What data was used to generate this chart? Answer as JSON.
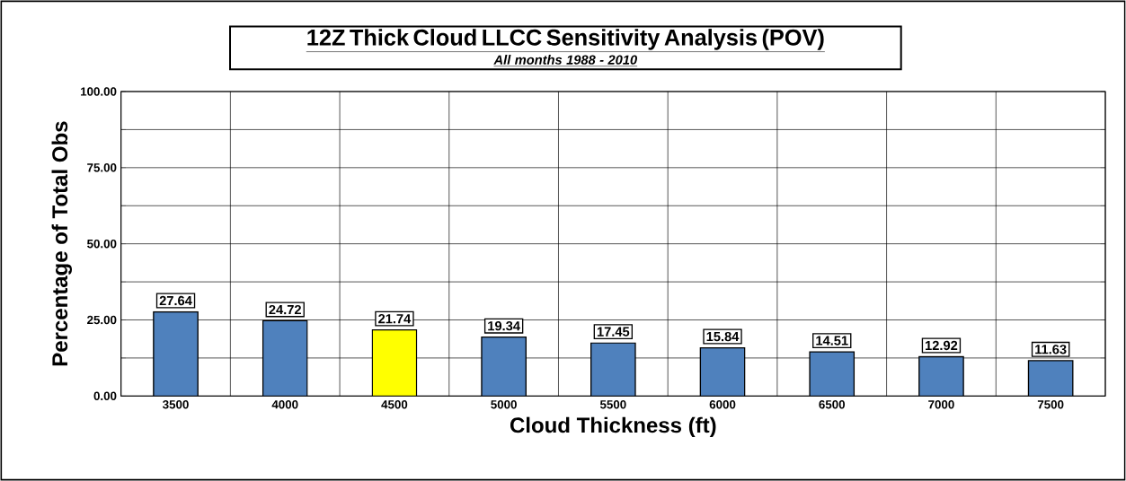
{
  "chart_data": {
    "type": "bar",
    "title": "12Z Thick Cloud LLCC Sensitivity Analysis (POV)",
    "subtitle": "All months 1988 - 2010",
    "xlabel": "Cloud Thickness (ft)",
    "ylabel": "Percentage of Total Obs",
    "categories": [
      "3500",
      "4000",
      "4500",
      "5000",
      "5500",
      "6000",
      "6500",
      "7000",
      "7500"
    ],
    "values": [
      27.64,
      24.72,
      21.74,
      19.34,
      17.45,
      15.84,
      14.51,
      12.92,
      11.63
    ],
    "colors": [
      "#4f81bd",
      "#4f81bd",
      "#ffff00",
      "#4f81bd",
      "#4f81bd",
      "#4f81bd",
      "#4f81bd",
      "#4f81bd",
      "#4f81bd"
    ],
    "ylim": [
      0,
      100
    ],
    "yticks": [
      {
        "value": 0,
        "label": "0.00"
      },
      {
        "value": 12.5,
        "label": null
      },
      {
        "value": 25,
        "label": "25.00"
      },
      {
        "value": 37.5,
        "label": null
      },
      {
        "value": 50,
        "label": "50.00"
      },
      {
        "value": 62.5,
        "label": null
      },
      {
        "value": 75,
        "label": "75.00"
      },
      {
        "value": 87.5,
        "label": null
      },
      {
        "value": 100,
        "label": "100.00"
      }
    ],
    "grid": true,
    "data_labels": true
  }
}
